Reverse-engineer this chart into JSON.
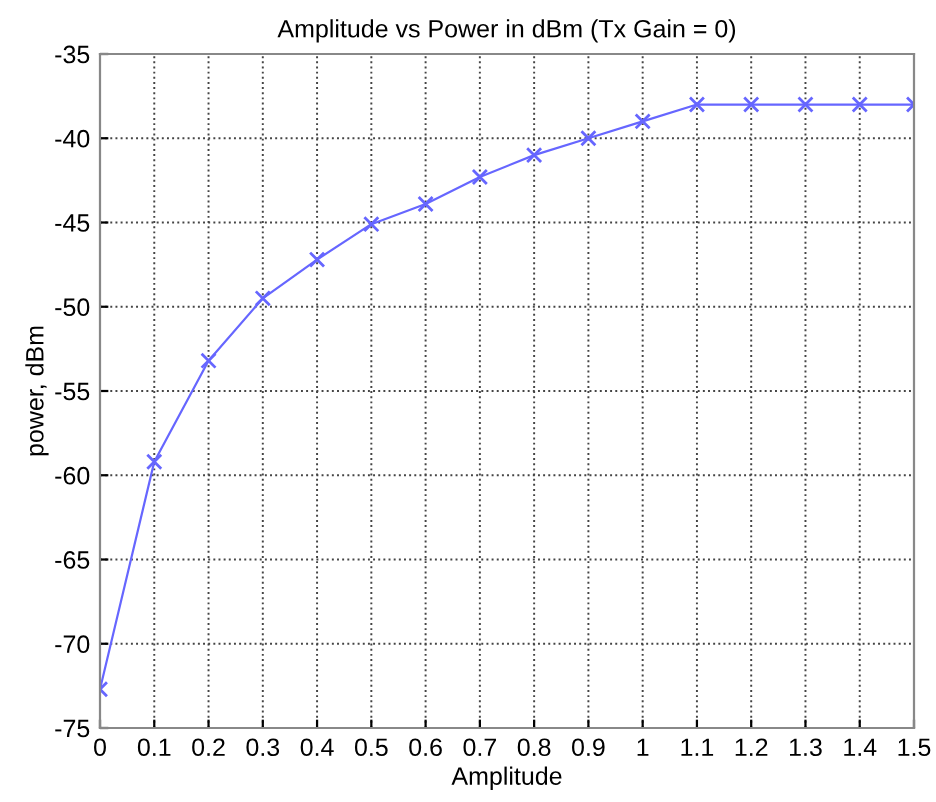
{
  "chart_data": {
    "type": "line",
    "title": "Amplitude vs Power in dBm (Tx Gain = 0)",
    "xlabel": "Amplitude",
    "ylabel": "power, dBm",
    "x": [
      0,
      0.1,
      0.2,
      0.3,
      0.4,
      0.5,
      0.6,
      0.7,
      0.8,
      0.9,
      1,
      1.1,
      1.2,
      1.3,
      1.4,
      1.5
    ],
    "series": [
      {
        "color": "#6666ff",
        "values": [
          -72.7,
          -59.2,
          -53.2,
          -49.5,
          -47.2,
          -45.1,
          -43.9,
          -42.3,
          -41.0,
          -40.0,
          -39.0,
          -38,
          -38,
          -38,
          -38,
          -38
        ]
      }
    ],
    "xlim": [
      0,
      1.5
    ],
    "xticks": [
      0,
      0.1,
      0.2,
      0.3,
      0.4,
      0.5,
      0.6,
      0.7,
      0.8,
      0.9,
      1,
      1.1,
      1.2,
      1.3,
      1.4,
      1.5
    ],
    "ylim": [
      -75,
      -35
    ],
    "yticks": [
      -75,
      -70,
      -65,
      -60,
      -55,
      -50,
      -45,
      -40,
      -35
    ],
    "grid": true,
    "marker": "cross",
    "line_style": "solid"
  }
}
